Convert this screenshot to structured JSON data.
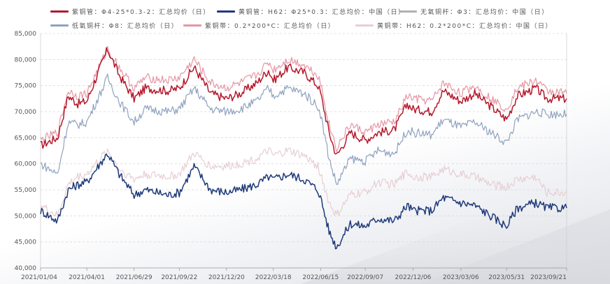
{
  "chart_data": {
    "type": "line",
    "title": "",
    "xlabel": "",
    "ylabel": "",
    "ylim": [
      40000,
      85000
    ],
    "yticks": [
      "40,000",
      "45,000",
      "50,000",
      "55,000",
      "60,000",
      "65,000",
      "70,000",
      "75,000",
      "80,000",
      "85,000"
    ],
    "yticks_values": [
      40000,
      45000,
      50000,
      55000,
      60000,
      65000,
      70000,
      75000,
      80000,
      85000
    ],
    "xticks": [
      "2021/01/04",
      "2021/04/01",
      "2021/06/29",
      "2021/09/22",
      "2021/12/20",
      "2022/03/18",
      "2022/06/15",
      "2022/09/07",
      "2022/12/06",
      "2023/03/06",
      "2023/05/31",
      "2023/09/21"
    ],
    "grid": "horizontal-dashed",
    "legend_position": "top",
    "series": [
      {
        "name": "紫铜管：Φ4-25*0.3-2：汇总均价（日）",
        "color": "#b5182b",
        "points": [
          [
            "2021/01/04",
            63500
          ],
          [
            "2021/02/05",
            65000
          ],
          [
            "2021/02/25",
            73000
          ],
          [
            "2021/03/15",
            71500
          ],
          [
            "2021/04/01",
            72000
          ],
          [
            "2021/05/10",
            82000
          ],
          [
            "2021/06/01",
            77000
          ],
          [
            "2021/06/29",
            72500
          ],
          [
            "2021/07/20",
            74500
          ],
          [
            "2021/09/01",
            74000
          ],
          [
            "2021/09/22",
            74500
          ],
          [
            "2021/10/20",
            78500
          ],
          [
            "2021/11/20",
            73500
          ],
          [
            "2021/12/20",
            72500
          ],
          [
            "2022/01/15",
            73500
          ],
          [
            "2022/02/15",
            75500
          ],
          [
            "2022/03/09",
            78000
          ],
          [
            "2022/03/18",
            76000
          ],
          [
            "2022/04/15",
            78500
          ],
          [
            "2022/05/15",
            77500
          ],
          [
            "2022/06/10",
            75000
          ],
          [
            "2022/06/15",
            73500
          ],
          [
            "2022/07/01",
            66000
          ],
          [
            "2022/07/15",
            61500
          ],
          [
            "2022/08/10",
            66000
          ],
          [
            "2022/09/07",
            64500
          ],
          [
            "2022/10/01",
            66000
          ],
          [
            "2022/11/01",
            66500
          ],
          [
            "2022/11/25",
            71500
          ],
          [
            "2022/12/06",
            70500
          ],
          [
            "2023/01/10",
            70000
          ],
          [
            "2023/02/01",
            74000
          ],
          [
            "2023/03/06",
            72000
          ],
          [
            "2023/04/01",
            73500
          ],
          [
            "2023/05/01",
            71000
          ],
          [
            "2023/05/31",
            68500
          ],
          [
            "2023/06/20",
            73000
          ],
          [
            "2023/07/25",
            74500
          ],
          [
            "2023/08/15",
            72500
          ],
          [
            "2023/09/21",
            72500
          ]
        ]
      },
      {
        "name": "黄铜管：H62：Φ25*0.3：汇总均价：中国（日）",
        "color": "#1f3a7a",
        "points": [
          [
            "2021/01/04",
            51000
          ],
          [
            "2021/02/05",
            49000
          ],
          [
            "2021/02/25",
            55000
          ],
          [
            "2021/03/15",
            56000
          ],
          [
            "2021/04/01",
            56500
          ],
          [
            "2021/05/10",
            62000
          ],
          [
            "2021/06/01",
            58000
          ],
          [
            "2021/06/29",
            54000
          ],
          [
            "2021/07/20",
            55000
          ],
          [
            "2021/09/01",
            54000
          ],
          [
            "2021/09/22",
            54500
          ],
          [
            "2021/10/20",
            59500
          ],
          [
            "2021/11/20",
            55000
          ],
          [
            "2021/12/20",
            54500
          ],
          [
            "2022/01/15",
            55000
          ],
          [
            "2022/02/15",
            56000
          ],
          [
            "2022/03/09",
            57500
          ],
          [
            "2022/03/18",
            57000
          ],
          [
            "2022/04/15",
            58000
          ],
          [
            "2022/05/15",
            57000
          ],
          [
            "2022/06/10",
            55000
          ],
          [
            "2022/06/15",
            53500
          ],
          [
            "2022/07/01",
            47000
          ],
          [
            "2022/07/15",
            44000
          ],
          [
            "2022/08/10",
            48500
          ],
          [
            "2022/09/07",
            48000
          ],
          [
            "2022/10/01",
            49500
          ],
          [
            "2022/11/01",
            49000
          ],
          [
            "2022/11/25",
            52000
          ],
          [
            "2022/12/06",
            51000
          ],
          [
            "2023/01/10",
            51000
          ],
          [
            "2023/02/01",
            53500
          ],
          [
            "2023/03/06",
            52500
          ],
          [
            "2023/04/01",
            52000
          ],
          [
            "2023/05/01",
            50000
          ],
          [
            "2023/05/31",
            48000
          ],
          [
            "2023/06/20",
            51500
          ],
          [
            "2023/07/25",
            52500
          ],
          [
            "2023/08/15",
            51500
          ],
          [
            "2023/09/21",
            51500
          ]
        ]
      },
      {
        "name": "无氧铜杆：Φ3：汇总均价：中国（日）",
        "color": "#b0b0b4",
        "points": []
      },
      {
        "name": "低氧铜杆：Φ8：汇总均价（日）",
        "color": "#8fa2bf",
        "points": [
          [
            "2021/01/04",
            60000
          ],
          [
            "2021/02/05",
            58000
          ],
          [
            "2021/02/25",
            68000
          ],
          [
            "2021/03/15",
            67500
          ],
          [
            "2021/04/01",
            68000
          ],
          [
            "2021/05/10",
            76500
          ],
          [
            "2021/06/01",
            72000
          ],
          [
            "2021/06/29",
            68000
          ],
          [
            "2021/07/20",
            70500
          ],
          [
            "2021/09/01",
            70000
          ],
          [
            "2021/09/22",
            70500
          ],
          [
            "2021/10/20",
            74500
          ],
          [
            "2021/11/20",
            70500
          ],
          [
            "2021/12/20",
            70000
          ],
          [
            "2022/01/15",
            70500
          ],
          [
            "2022/02/15",
            72000
          ],
          [
            "2022/03/09",
            74500
          ],
          [
            "2022/03/18",
            73000
          ],
          [
            "2022/04/15",
            74500
          ],
          [
            "2022/05/15",
            73500
          ],
          [
            "2022/06/10",
            71000
          ],
          [
            "2022/06/15",
            69500
          ],
          [
            "2022/07/01",
            61000
          ],
          [
            "2022/07/15",
            56000
          ],
          [
            "2022/08/10",
            61000
          ],
          [
            "2022/09/07",
            60500
          ],
          [
            "2022/10/01",
            62500
          ],
          [
            "2022/11/01",
            62000
          ],
          [
            "2022/11/25",
            66500
          ],
          [
            "2022/12/06",
            66000
          ],
          [
            "2023/01/10",
            65500
          ],
          [
            "2023/02/01",
            68500
          ],
          [
            "2023/03/06",
            67000
          ],
          [
            "2023/04/01",
            68000
          ],
          [
            "2023/05/01",
            66000
          ],
          [
            "2023/05/31",
            64000
          ],
          [
            "2023/06/20",
            68500
          ],
          [
            "2023/07/25",
            70000
          ],
          [
            "2023/08/15",
            69500
          ],
          [
            "2023/09/21",
            69500
          ]
        ]
      },
      {
        "name": "紫铜带：0.2*200*C：汇总均价（日）",
        "color": "#e596a4",
        "points": [
          [
            "2021/01/04",
            64500
          ],
          [
            "2021/02/05",
            66000
          ],
          [
            "2021/02/25",
            74000
          ],
          [
            "2021/03/15",
            73000
          ],
          [
            "2021/04/01",
            73500
          ],
          [
            "2021/05/10",
            82000
          ],
          [
            "2021/06/01",
            78500
          ],
          [
            "2021/06/29",
            74500
          ],
          [
            "2021/07/20",
            76500
          ],
          [
            "2021/09/01",
            76000
          ],
          [
            "2021/09/22",
            76500
          ],
          [
            "2021/10/20",
            80000
          ],
          [
            "2021/11/20",
            75500
          ],
          [
            "2021/12/20",
            74500
          ],
          [
            "2022/01/15",
            75500
          ],
          [
            "2022/02/15",
            77000
          ],
          [
            "2022/03/09",
            79500
          ],
          [
            "2022/03/18",
            78000
          ],
          [
            "2022/04/15",
            80000
          ],
          [
            "2022/05/15",
            79000
          ],
          [
            "2022/06/10",
            77000
          ],
          [
            "2022/06/15",
            75500
          ],
          [
            "2022/07/01",
            67500
          ],
          [
            "2022/07/15",
            63000
          ],
          [
            "2022/08/10",
            67500
          ],
          [
            "2022/09/07",
            66000
          ],
          [
            "2022/10/01",
            67500
          ],
          [
            "2022/11/01",
            68000
          ],
          [
            "2022/11/25",
            73000
          ],
          [
            "2022/12/06",
            72500
          ],
          [
            "2023/01/10",
            72000
          ],
          [
            "2023/02/01",
            75500
          ],
          [
            "2023/03/06",
            73500
          ],
          [
            "2023/04/01",
            75000
          ],
          [
            "2023/05/01",
            72500
          ],
          [
            "2023/05/31",
            70500
          ],
          [
            "2023/06/20",
            74500
          ],
          [
            "2023/07/25",
            76000
          ],
          [
            "2023/08/15",
            74000
          ],
          [
            "2023/09/21",
            73500
          ]
        ]
      },
      {
        "name": "黄铜带：H62：0.2*200*C：汇总均价：中国（日）",
        "color": "#e6cfd3",
        "points": [
          [
            "2021/01/04",
            52000
          ],
          [
            "2021/02/05",
            50000
          ],
          [
            "2021/02/25",
            56000
          ],
          [
            "2021/03/15",
            57500
          ],
          [
            "2021/04/01",
            58000
          ],
          [
            "2021/05/10",
            62500
          ],
          [
            "2021/06/01",
            59000
          ],
          [
            "2021/06/29",
            57000
          ],
          [
            "2021/07/20",
            58000
          ],
          [
            "2021/09/01",
            57500
          ],
          [
            "2021/09/22",
            58000
          ],
          [
            "2021/10/20",
            62000
          ],
          [
            "2021/11/20",
            59500
          ],
          [
            "2021/12/20",
            59500
          ],
          [
            "2022/01/15",
            60000
          ],
          [
            "2022/02/15",
            61000
          ],
          [
            "2022/03/09",
            62500
          ],
          [
            "2022/03/18",
            61500
          ],
          [
            "2022/04/15",
            62500
          ],
          [
            "2022/05/15",
            61500
          ],
          [
            "2022/06/10",
            59500
          ],
          [
            "2022/06/15",
            58000
          ],
          [
            "2022/07/01",
            52500
          ],
          [
            "2022/07/15",
            50000
          ],
          [
            "2022/08/10",
            54000
          ],
          [
            "2022/09/07",
            54500
          ],
          [
            "2022/10/01",
            56500
          ],
          [
            "2022/11/01",
            56000
          ],
          [
            "2022/11/25",
            58500
          ],
          [
            "2022/12/06",
            57500
          ],
          [
            "2023/01/10",
            57500
          ],
          [
            "2023/02/01",
            59000
          ],
          [
            "2023/03/06",
            58000
          ],
          [
            "2023/04/01",
            57500
          ],
          [
            "2023/05/01",
            56000
          ],
          [
            "2023/05/31",
            55500
          ],
          [
            "2023/06/20",
            57000
          ],
          [
            "2023/07/25",
            57500
          ],
          [
            "2023/08/15",
            54500
          ],
          [
            "2023/09/21",
            54500
          ]
        ]
      }
    ]
  }
}
